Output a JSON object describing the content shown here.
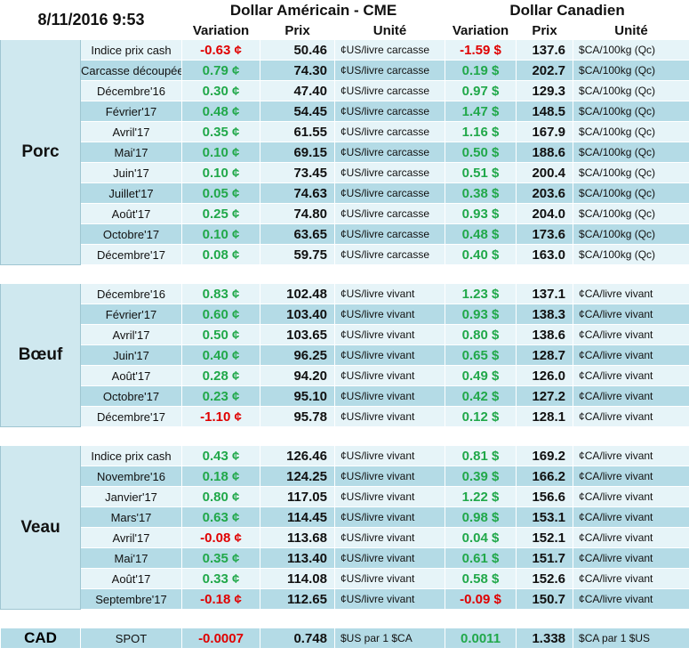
{
  "header": {
    "datetime": "8/11/2016 9:53",
    "usd_title": "Dollar Américain - CME",
    "cad_title": "Dollar Canadien",
    "col_variation": "Variation",
    "col_prix": "Prix",
    "col_unite": "Unité"
  },
  "colors": {
    "positive": "#21a84a",
    "negative": "#e00000",
    "row_light": "#e6f4f8",
    "row_dark": "#b4dbe6"
  },
  "porc": {
    "label": "Porc",
    "rows": [
      {
        "name": "Indice prix cash",
        "usd_var": "-0.63 ¢",
        "usd_sign": "neg",
        "usd_prix": "50.46",
        "usd_unit": "¢US/livre carcasse",
        "cad_var": "-1.59 $",
        "cad_sign": "neg",
        "cad_prix": "137.6",
        "cad_unit": "$CA/100kg (Qc)"
      },
      {
        "name": "Carcasse découpée",
        "usd_var": "0.79 ¢",
        "usd_sign": "pos",
        "usd_prix": "74.30",
        "usd_unit": "¢US/livre carcasse",
        "cad_var": "0.19 $",
        "cad_sign": "pos",
        "cad_prix": "202.7",
        "cad_unit": "$CA/100kg (Qc)"
      },
      {
        "name": "Décembre'16",
        "usd_var": "0.30 ¢",
        "usd_sign": "pos",
        "usd_prix": "47.40",
        "usd_unit": "¢US/livre carcasse",
        "cad_var": "0.97 $",
        "cad_sign": "pos",
        "cad_prix": "129.3",
        "cad_unit": "$CA/100kg (Qc)"
      },
      {
        "name": "Février'17",
        "usd_var": "0.48 ¢",
        "usd_sign": "pos",
        "usd_prix": "54.45",
        "usd_unit": "¢US/livre carcasse",
        "cad_var": "1.47 $",
        "cad_sign": "pos",
        "cad_prix": "148.5",
        "cad_unit": "$CA/100kg (Qc)"
      },
      {
        "name": "Avril'17",
        "usd_var": "0.35 ¢",
        "usd_sign": "pos",
        "usd_prix": "61.55",
        "usd_unit": "¢US/livre carcasse",
        "cad_var": "1.16 $",
        "cad_sign": "pos",
        "cad_prix": "167.9",
        "cad_unit": "$CA/100kg (Qc)"
      },
      {
        "name": "Mai'17",
        "usd_var": "0.10 ¢",
        "usd_sign": "pos",
        "usd_prix": "69.15",
        "usd_unit": "¢US/livre carcasse",
        "cad_var": "0.50 $",
        "cad_sign": "pos",
        "cad_prix": "188.6",
        "cad_unit": "$CA/100kg (Qc)"
      },
      {
        "name": "Juin'17",
        "usd_var": "0.10 ¢",
        "usd_sign": "pos",
        "usd_prix": "73.45",
        "usd_unit": "¢US/livre carcasse",
        "cad_var": "0.51 $",
        "cad_sign": "pos",
        "cad_prix": "200.4",
        "cad_unit": "$CA/100kg (Qc)"
      },
      {
        "name": "Juillet'17",
        "usd_var": "0.05 ¢",
        "usd_sign": "pos",
        "usd_prix": "74.63",
        "usd_unit": "¢US/livre carcasse",
        "cad_var": "0.38 $",
        "cad_sign": "pos",
        "cad_prix": "203.6",
        "cad_unit": "$CA/100kg (Qc)"
      },
      {
        "name": "Août'17",
        "usd_var": "0.25 ¢",
        "usd_sign": "pos",
        "usd_prix": "74.80",
        "usd_unit": "¢US/livre carcasse",
        "cad_var": "0.93 $",
        "cad_sign": "pos",
        "cad_prix": "204.0",
        "cad_unit": "$CA/100kg (Qc)"
      },
      {
        "name": "Octobre'17",
        "usd_var": "0.10 ¢",
        "usd_sign": "pos",
        "usd_prix": "63.65",
        "usd_unit": "¢US/livre carcasse",
        "cad_var": "0.48 $",
        "cad_sign": "pos",
        "cad_prix": "173.6",
        "cad_unit": "$CA/100kg (Qc)"
      },
      {
        "name": "Décembre'17",
        "usd_var": "0.08 ¢",
        "usd_sign": "pos",
        "usd_prix": "59.75",
        "usd_unit": "¢US/livre carcasse",
        "cad_var": "0.40 $",
        "cad_sign": "pos",
        "cad_prix": "163.0",
        "cad_unit": "$CA/100kg (Qc)"
      }
    ]
  },
  "boeuf": {
    "label": "Bœuf",
    "rows": [
      {
        "name": "Décembre'16",
        "usd_var": "0.83 ¢",
        "usd_sign": "pos",
        "usd_prix": "102.48",
        "usd_unit": "¢US/livre vivant",
        "cad_var": "1.23 $",
        "cad_sign": "pos",
        "cad_prix": "137.1",
        "cad_unit": "¢CA/livre vivant"
      },
      {
        "name": "Février'17",
        "usd_var": "0.60 ¢",
        "usd_sign": "pos",
        "usd_prix": "103.40",
        "usd_unit": "¢US/livre vivant",
        "cad_var": "0.93 $",
        "cad_sign": "pos",
        "cad_prix": "138.3",
        "cad_unit": "¢CA/livre vivant"
      },
      {
        "name": "Avril'17",
        "usd_var": "0.50 ¢",
        "usd_sign": "pos",
        "usd_prix": "103.65",
        "usd_unit": "¢US/livre vivant",
        "cad_var": "0.80 $",
        "cad_sign": "pos",
        "cad_prix": "138.6",
        "cad_unit": "¢CA/livre vivant"
      },
      {
        "name": "Juin'17",
        "usd_var": "0.40 ¢",
        "usd_sign": "pos",
        "usd_prix": "96.25",
        "usd_unit": "¢US/livre vivant",
        "cad_var": "0.65 $",
        "cad_sign": "pos",
        "cad_prix": "128.7",
        "cad_unit": "¢CA/livre vivant"
      },
      {
        "name": "Août'17",
        "usd_var": "0.28 ¢",
        "usd_sign": "pos",
        "usd_prix": "94.20",
        "usd_unit": "¢US/livre vivant",
        "cad_var": "0.49 $",
        "cad_sign": "pos",
        "cad_prix": "126.0",
        "cad_unit": "¢CA/livre vivant"
      },
      {
        "name": "Octobre'17",
        "usd_var": "0.23 ¢",
        "usd_sign": "pos",
        "usd_prix": "95.10",
        "usd_unit": "¢US/livre vivant",
        "cad_var": "0.42 $",
        "cad_sign": "pos",
        "cad_prix": "127.2",
        "cad_unit": "¢CA/livre vivant"
      },
      {
        "name": "Décembre'17",
        "usd_var": "-1.10 ¢",
        "usd_sign": "neg",
        "usd_prix": "95.78",
        "usd_unit": "¢US/livre vivant",
        "cad_var": "0.12 $",
        "cad_sign": "pos",
        "cad_prix": "128.1",
        "cad_unit": "¢CA/livre vivant"
      }
    ]
  },
  "veau": {
    "label": "Veau",
    "rows": [
      {
        "name": "Indice prix cash",
        "usd_var": "0.43 ¢",
        "usd_sign": "pos",
        "usd_prix": "126.46",
        "usd_unit": "¢US/livre vivant",
        "cad_var": "0.81 $",
        "cad_sign": "pos",
        "cad_prix": "169.2",
        "cad_unit": "¢CA/livre vivant"
      },
      {
        "name": "Novembre'16",
        "usd_var": "0.18 ¢",
        "usd_sign": "pos",
        "usd_prix": "124.25",
        "usd_unit": "¢US/livre vivant",
        "cad_var": "0.39 $",
        "cad_sign": "pos",
        "cad_prix": "166.2",
        "cad_unit": "¢CA/livre vivant"
      },
      {
        "name": "Janvier'17",
        "usd_var": "0.80 ¢",
        "usd_sign": "pos",
        "usd_prix": "117.05",
        "usd_unit": "¢US/livre vivant",
        "cad_var": "1.22 $",
        "cad_sign": "pos",
        "cad_prix": "156.6",
        "cad_unit": "¢CA/livre vivant"
      },
      {
        "name": "Mars'17",
        "usd_var": "0.63 ¢",
        "usd_sign": "pos",
        "usd_prix": "114.45",
        "usd_unit": "¢US/livre vivant",
        "cad_var": "0.98 $",
        "cad_sign": "pos",
        "cad_prix": "153.1",
        "cad_unit": "¢CA/livre vivant"
      },
      {
        "name": "Avril'17",
        "usd_var": "-0.08 ¢",
        "usd_sign": "neg",
        "usd_prix": "113.68",
        "usd_unit": "¢US/livre vivant",
        "cad_var": "0.04 $",
        "cad_sign": "pos",
        "cad_prix": "152.1",
        "cad_unit": "¢CA/livre vivant"
      },
      {
        "name": "Mai'17",
        "usd_var": "0.35 ¢",
        "usd_sign": "pos",
        "usd_prix": "113.40",
        "usd_unit": "¢US/livre vivant",
        "cad_var": "0.61 $",
        "cad_sign": "pos",
        "cad_prix": "151.7",
        "cad_unit": "¢CA/livre vivant"
      },
      {
        "name": "Août'17",
        "usd_var": "0.33 ¢",
        "usd_sign": "pos",
        "usd_prix": "114.08",
        "usd_unit": "¢US/livre vivant",
        "cad_var": "0.58 $",
        "cad_sign": "pos",
        "cad_prix": "152.6",
        "cad_unit": "¢CA/livre vivant"
      },
      {
        "name": "Septembre'17",
        "usd_var": "-0.18 ¢",
        "usd_sign": "neg",
        "usd_prix": "112.65",
        "usd_unit": "¢US/livre vivant",
        "cad_var": "-0.09 $",
        "cad_sign": "neg",
        "cad_prix": "150.7",
        "cad_unit": "¢CA/livre vivant"
      }
    ]
  },
  "cad": {
    "label": "CAD",
    "name": "SPOT",
    "usd_var": "-0.0007",
    "usd_sign": "neg",
    "usd_prix": "0.748",
    "usd_unit": "$US par 1 $CA",
    "cad_var": "0.0011",
    "cad_sign": "pos",
    "cad_prix": "1.338",
    "cad_unit": "$CA par 1 $US"
  }
}
